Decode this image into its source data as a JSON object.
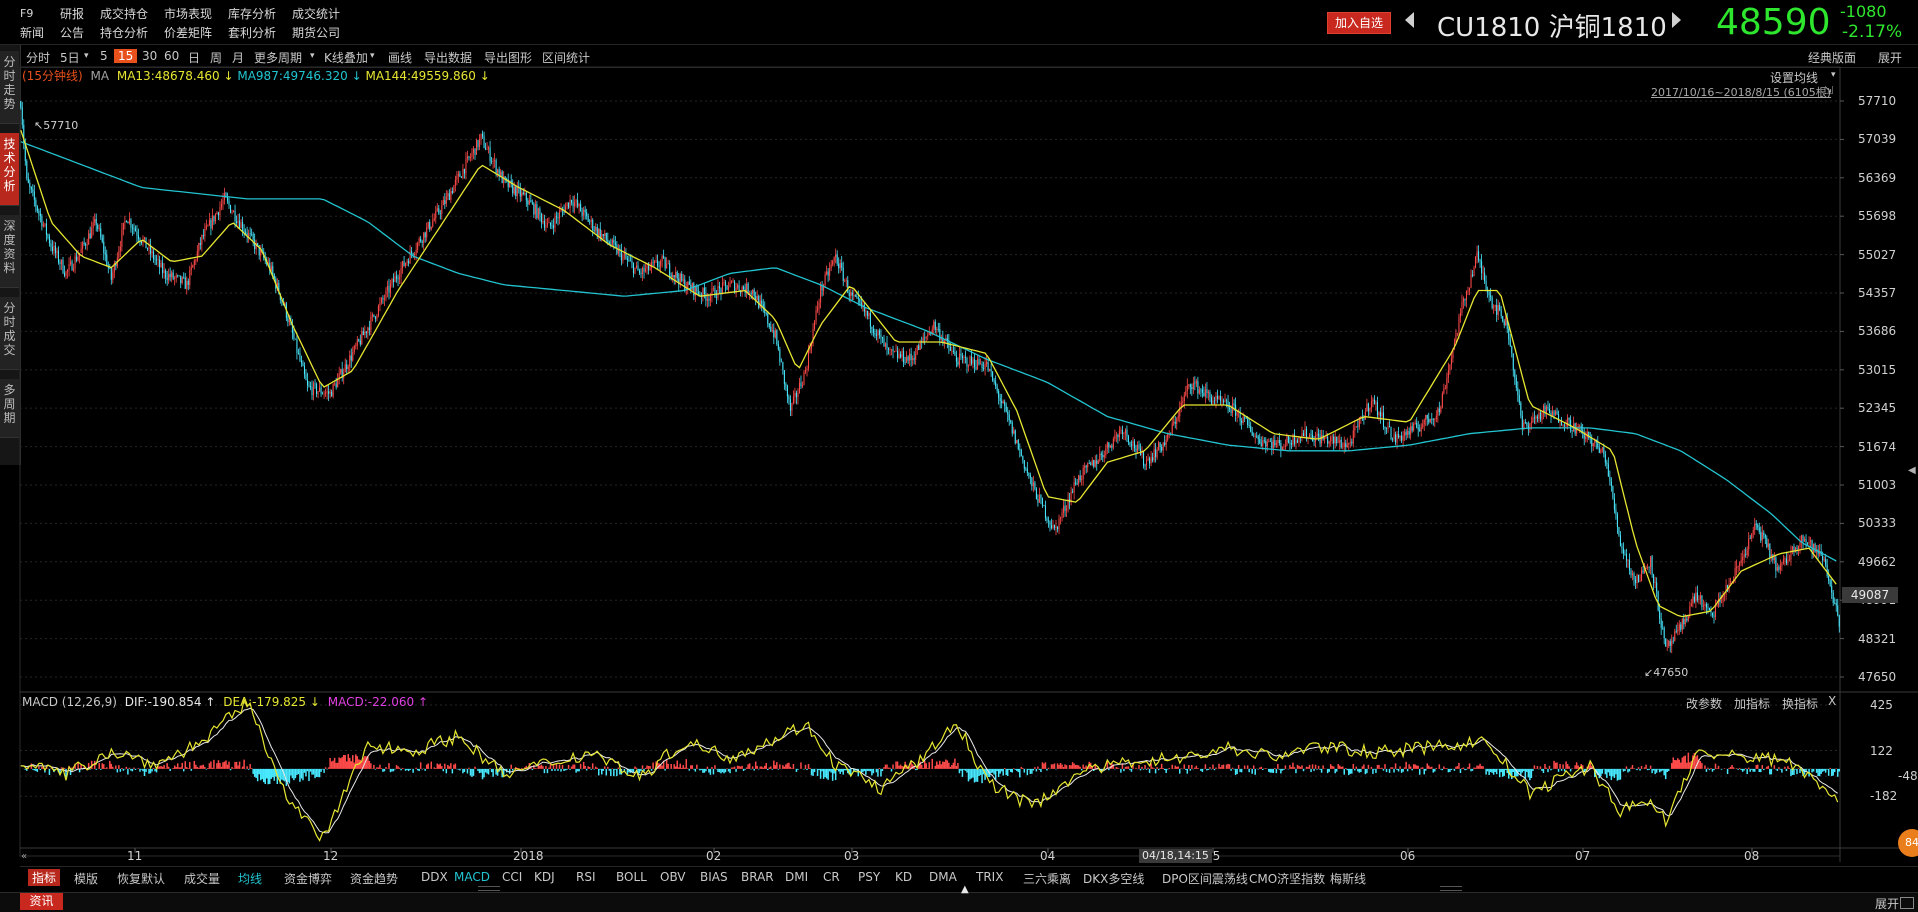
{
  "top_menu": {
    "row1": [
      "F9",
      "研报",
      "成交持仓",
      "市场表现",
      "库存分析",
      "成交统计"
    ],
    "row2": [
      "新闻",
      "公告",
      "持仓分析",
      "价差矩阵",
      "套利分析",
      "期货公司"
    ]
  },
  "header": {
    "add_favorite": "加入自选",
    "symbol": "CU1810 沪铜1810",
    "last_price": "48590",
    "change": "-1080",
    "change_pct": "-2.17%"
  },
  "toolbar": {
    "items": [
      "分时",
      "5日",
      "5",
      "15",
      "30",
      "60",
      "日",
      "周",
      "月",
      "更多周期",
      "K线叠加",
      "画线",
      "导出数据",
      "导出图形",
      "区间统计"
    ],
    "right": [
      "经典版面",
      "展开"
    ]
  },
  "side_tabs": [
    "分时走势",
    "技术分析",
    "深度资料",
    "分时成交",
    "多周期"
  ],
  "main_legend": {
    "period": "(15分钟线)",
    "ma_label": "MA",
    "ma13": "MA13:48678.460",
    "ma987": "MA987:49746.320",
    "ma144": "MA144:49559.860",
    "settings": "设置均线",
    "range_note": "2017/10/16~2018/8/15 (6105根)"
  },
  "price_axis_ticks": [
    "57710",
    "57039",
    "56369",
    "55698",
    "55027",
    "54357",
    "53686",
    "53015",
    "52345",
    "51674",
    "51003",
    "50333",
    "49662",
    "48991",
    "48321",
    "47650"
  ],
  "current_price_tag": "49087",
  "high_marker": "57710",
  "low_marker": "47650",
  "macd_legend": {
    "name": "MACD (12,26,9)",
    "dif": "DIF:-190.854",
    "dea": "DEA:-179.825",
    "macd": "MACD:-22.060",
    "actions": [
      "改参数",
      "加指标",
      "换指标"
    ],
    "close": "X"
  },
  "macd_axis_ticks": [
    "425",
    "122",
    "-182",
    "-48"
  ],
  "x_axis": {
    "labels": [
      "11",
      "12",
      "2018",
      "02",
      "03",
      "04",
      "05",
      "06",
      "07",
      "08"
    ],
    "cursor": "04/18,14:15"
  },
  "bottom_tabs": [
    "指标",
    "模版",
    "恢复默认",
    "成交量",
    "均线",
    "资金博弈",
    "资金趋势",
    "DDX",
    "MACD",
    "CCI",
    "KDJ",
    "RSI",
    "BOLL",
    "OBV",
    "BIAS",
    "BRAR",
    "DMI",
    "CR",
    "PSY",
    "KD",
    "DMA",
    "TRIX",
    "三六乘离",
    "DKX多空线",
    "DPO区间震荡线",
    "CMO济坚指数",
    "梅斯线"
  ],
  "status": {
    "news_tab": "资讯",
    "expand": "展开",
    "badge": "84"
  },
  "colors": {
    "up": "#ff4a4a",
    "down": "#48e8ff",
    "ma13": "#e6e632",
    "ma987": "#22c4d0",
    "ma144": "#e6e632",
    "dif": "#e8e8e8",
    "dea": "#e6e632",
    "price_green": "#2ee62e"
  },
  "chart_data": {
    "type": "candlestick",
    "period": "15分钟线",
    "ylim": [
      47650,
      57710
    ],
    "anchors": [
      [
        0,
        57710
      ],
      [
        4,
        56300
      ],
      [
        10,
        55900
      ],
      [
        20,
        55200
      ],
      [
        30,
        54700
      ],
      [
        40,
        55100
      ],
      [
        50,
        55600
      ],
      [
        60,
        54600
      ],
      [
        70,
        55700
      ],
      [
        80,
        55300
      ],
      [
        95,
        54700
      ],
      [
        110,
        54500
      ],
      [
        120,
        55300
      ],
      [
        135,
        56000
      ],
      [
        150,
        55400
      ],
      [
        165,
        54800
      ],
      [
        175,
        54100
      ],
      [
        190,
        52700
      ],
      [
        205,
        52600
      ],
      [
        220,
        53300
      ],
      [
        235,
        54000
      ],
      [
        250,
        54700
      ],
      [
        265,
        55300
      ],
      [
        280,
        55900
      ],
      [
        295,
        56600
      ],
      [
        305,
        57060
      ],
      [
        320,
        56300
      ],
      [
        335,
        56000
      ],
      [
        350,
        55500
      ],
      [
        365,
        56000
      ],
      [
        380,
        55500
      ],
      [
        395,
        55100
      ],
      [
        410,
        54700
      ],
      [
        425,
        54900
      ],
      [
        440,
        54500
      ],
      [
        455,
        54300
      ],
      [
        470,
        54500
      ],
      [
        485,
        54400
      ],
      [
        500,
        53600
      ],
      [
        510,
        52300
      ],
      [
        520,
        53000
      ],
      [
        530,
        54400
      ],
      [
        540,
        55000
      ],
      [
        550,
        54300
      ],
      [
        560,
        54000
      ],
      [
        575,
        53300
      ],
      [
        590,
        53200
      ],
      [
        605,
        53800
      ],
      [
        620,
        53200
      ],
      [
        640,
        53100
      ],
      [
        655,
        52100
      ],
      [
        670,
        51000
      ],
      [
        685,
        50200
      ],
      [
        700,
        51100
      ],
      [
        715,
        51500
      ],
      [
        730,
        52000
      ],
      [
        745,
        51400
      ],
      [
        760,
        51800
      ],
      [
        775,
        52800
      ],
      [
        790,
        52500
      ],
      [
        805,
        52300
      ],
      [
        820,
        51800
      ],
      [
        835,
        51700
      ],
      [
        850,
        51900
      ],
      [
        865,
        51800
      ],
      [
        880,
        51700
      ],
      [
        895,
        52500
      ],
      [
        910,
        51800
      ],
      [
        925,
        52000
      ],
      [
        940,
        52300
      ],
      [
        955,
        54100
      ],
      [
        965,
        55000
      ],
      [
        975,
        54200
      ],
      [
        985,
        53800
      ],
      [
        995,
        52000
      ],
      [
        1010,
        52300
      ],
      [
        1025,
        52100
      ],
      [
        1040,
        51800
      ],
      [
        1050,
        51500
      ],
      [
        1060,
        50000
      ],
      [
        1070,
        49300
      ],
      [
        1080,
        49700
      ],
      [
        1090,
        48100
      ],
      [
        1100,
        48500
      ],
      [
        1110,
        49100
      ],
      [
        1120,
        48700
      ],
      [
        1135,
        49400
      ],
      [
        1150,
        50300
      ],
      [
        1165,
        49500
      ],
      [
        1180,
        50100
      ],
      [
        1195,
        49700
      ],
      [
        1205,
        48600
      ]
    ],
    "ma13": [
      [
        0,
        57200
      ],
      [
        20,
        55600
      ],
      [
        40,
        55000
      ],
      [
        60,
        54800
      ],
      [
        80,
        55300
      ],
      [
        100,
        54900
      ],
      [
        120,
        55000
      ],
      [
        140,
        55600
      ],
      [
        160,
        55100
      ],
      [
        180,
        53800
      ],
      [
        200,
        52700
      ],
      [
        220,
        53000
      ],
      [
        250,
        54400
      ],
      [
        280,
        55600
      ],
      [
        305,
        56600
      ],
      [
        330,
        56200
      ],
      [
        360,
        55800
      ],
      [
        390,
        55200
      ],
      [
        420,
        54800
      ],
      [
        450,
        54300
      ],
      [
        480,
        54400
      ],
      [
        500,
        53900
      ],
      [
        515,
        53000
      ],
      [
        530,
        53800
      ],
      [
        550,
        54500
      ],
      [
        580,
        53500
      ],
      [
        610,
        53500
      ],
      [
        640,
        53300
      ],
      [
        660,
        52300
      ],
      [
        680,
        50800
      ],
      [
        700,
        50700
      ],
      [
        720,
        51400
      ],
      [
        745,
        51600
      ],
      [
        770,
        52400
      ],
      [
        800,
        52400
      ],
      [
        830,
        51900
      ],
      [
        860,
        51800
      ],
      [
        890,
        52200
      ],
      [
        920,
        52100
      ],
      [
        950,
        53400
      ],
      [
        965,
        54400
      ],
      [
        980,
        54400
      ],
      [
        1000,
        52400
      ],
      [
        1030,
        52000
      ],
      [
        1055,
        51600
      ],
      [
        1070,
        50000
      ],
      [
        1085,
        48900
      ],
      [
        1100,
        48700
      ],
      [
        1120,
        48800
      ],
      [
        1140,
        49500
      ],
      [
        1165,
        49800
      ],
      [
        1185,
        49900
      ],
      [
        1205,
        49200
      ]
    ],
    "ma987": [
      [
        0,
        57000
      ],
      [
        80,
        56200
      ],
      [
        150,
        56000
      ],
      [
        200,
        56000
      ],
      [
        230,
        55600
      ],
      [
        260,
        55000
      ],
      [
        290,
        54700
      ],
      [
        320,
        54500
      ],
      [
        360,
        54400
      ],
      [
        400,
        54300
      ],
      [
        440,
        54400
      ],
      [
        470,
        54700
      ],
      [
        500,
        54800
      ],
      [
        530,
        54500
      ],
      [
        560,
        54100
      ],
      [
        600,
        53700
      ],
      [
        640,
        53200
      ],
      [
        680,
        52800
      ],
      [
        720,
        52200
      ],
      [
        760,
        51900
      ],
      [
        800,
        51700
      ],
      [
        840,
        51600
      ],
      [
        880,
        51600
      ],
      [
        920,
        51700
      ],
      [
        960,
        51900
      ],
      [
        1000,
        52000
      ],
      [
        1040,
        52000
      ],
      [
        1070,
        51900
      ],
      [
        1100,
        51600
      ],
      [
        1130,
        51100
      ],
      [
        1160,
        50500
      ],
      [
        1180,
        50000
      ],
      [
        1205,
        49650
      ]
    ]
  },
  "macd_data": {
    "ylim": [
      -480,
      425
    ],
    "dif_anchors": [
      [
        0,
        50
      ],
      [
        30,
        -40
      ],
      [
        60,
        120
      ],
      [
        90,
        30
      ],
      [
        120,
        180
      ],
      [
        150,
        440
      ],
      [
        180,
        -250
      ],
      [
        200,
        -470
      ],
      [
        230,
        160
      ],
      [
        260,
        120
      ],
      [
        290,
        220
      ],
      [
        320,
        -40
      ],
      [
        350,
        40
      ],
      [
        380,
        110
      ],
      [
        410,
        -60
      ],
      [
        440,
        180
      ],
      [
        470,
        80
      ],
      [
        500,
        200
      ],
      [
        520,
        300
      ],
      [
        540,
        30
      ],
      [
        570,
        -130
      ],
      [
        600,
        90
      ],
      [
        620,
        310
      ],
      [
        640,
        -80
      ],
      [
        670,
        -250
      ],
      [
        700,
        -30
      ],
      [
        740,
        60
      ],
      [
        770,
        70
      ],
      [
        800,
        140
      ],
      [
        830,
        80
      ],
      [
        860,
        150
      ],
      [
        900,
        110
      ],
      [
        950,
        160
      ],
      [
        970,
        190
      ],
      [
        1000,
        -160
      ],
      [
        1040,
        20
      ],
      [
        1060,
        -280
      ],
      [
        1080,
        -210
      ],
      [
        1090,
        -350
      ],
      [
        1110,
        100
      ],
      [
        1140,
        80
      ],
      [
        1170,
        60
      ],
      [
        1205,
        -190
      ]
    ]
  }
}
